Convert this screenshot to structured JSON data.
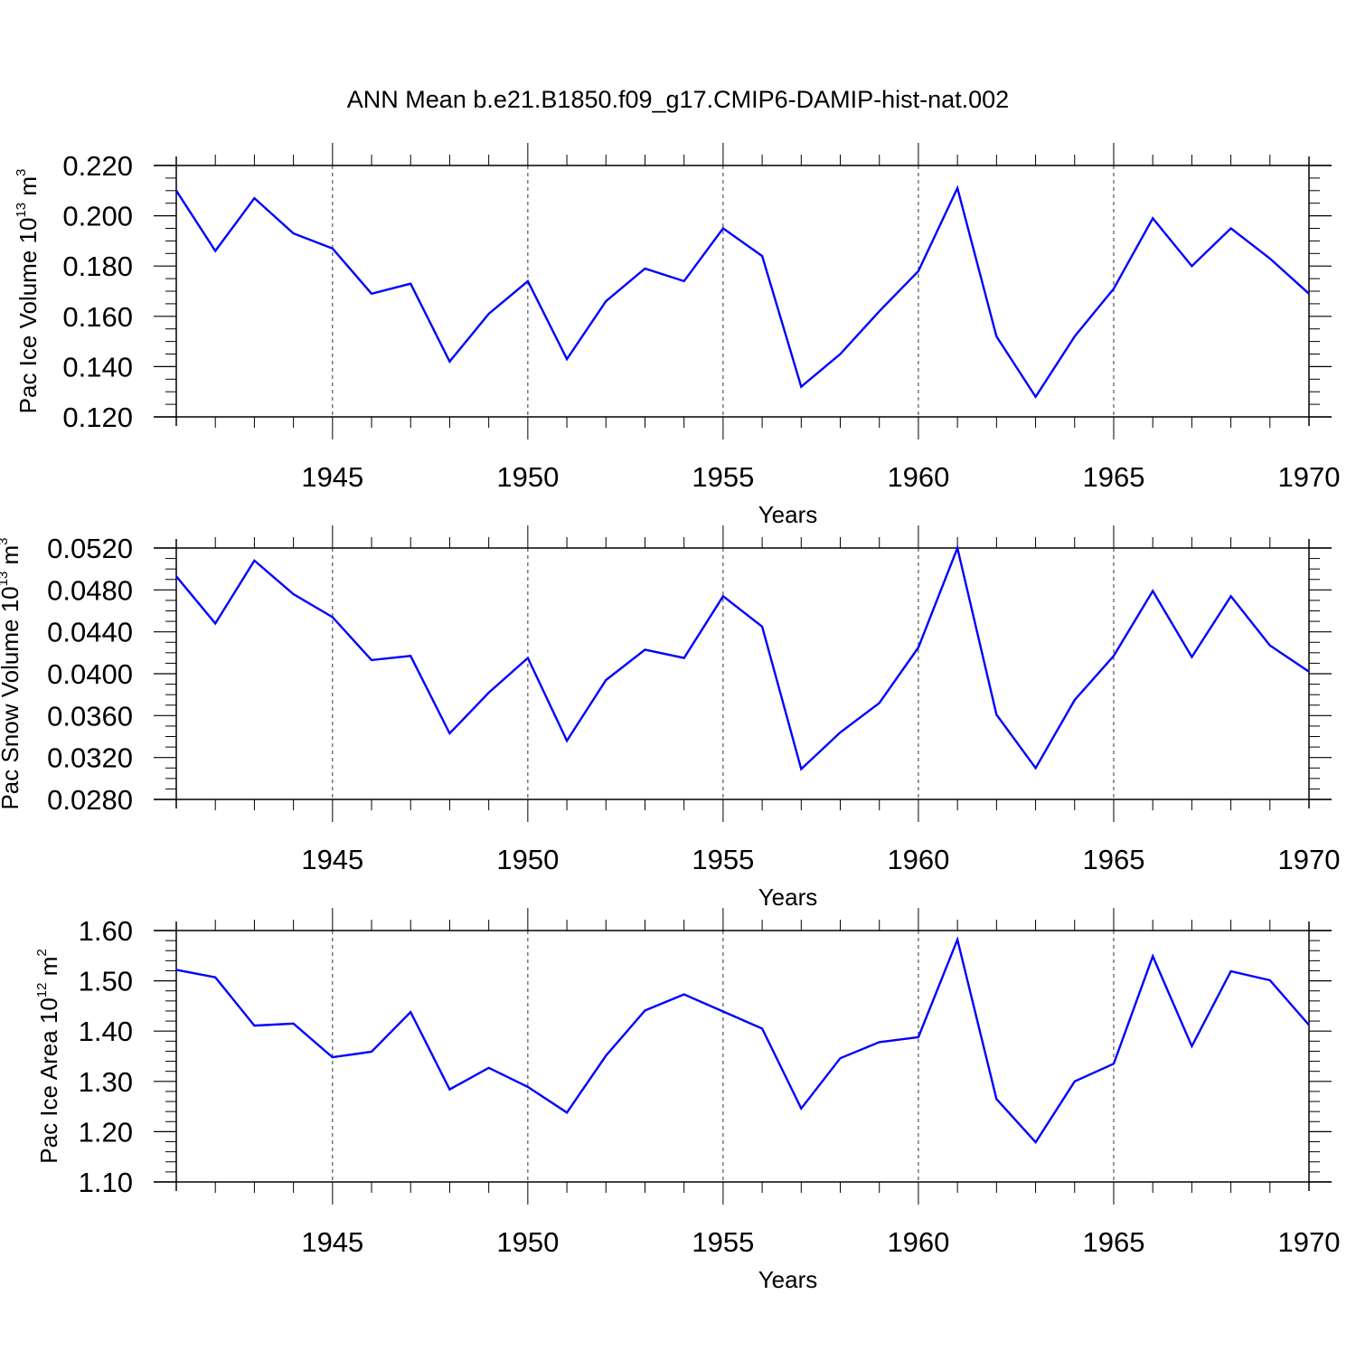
{
  "chart_title": "ANN Mean b.e21.B1850.f09_g17.CMIP6-DAMIP-hist-nat.002",
  "colors": {
    "line": "#0000ff",
    "axis": "#000000",
    "grid": "#000000"
  },
  "chart_data": [
    {
      "type": "line",
      "title": "ANN Mean b.e21.B1850.f09_g17.CMIP6-DAMIP-hist-nat.002",
      "ylabel": {
        "text": "Pac Ice Volume 10",
        "sup": "13",
        "unit": " m",
        "unit_sup": "3"
      },
      "xlabel": "Years",
      "xlim": [
        1941,
        1970
      ],
      "ylim": [
        0.12,
        0.22
      ],
      "x_ticks": [
        1945,
        1950,
        1955,
        1960,
        1965,
        1970
      ],
      "x_tick_labels": [
        "1945",
        "1950",
        "1955",
        "1960",
        "1965",
        "1970"
      ],
      "y_ticks": [
        0.12,
        0.14,
        0.16,
        0.18,
        0.2,
        0.22
      ],
      "y_tick_labels": [
        "0.120",
        "0.140",
        "0.160",
        "0.180",
        "0.200",
        "0.220"
      ],
      "y_minor_step": 0.005,
      "grid": "dashed vertical at major x ticks",
      "series": [
        {
          "name": "Pac Ice Volume",
          "x": [
            1941,
            1942,
            1943,
            1944,
            1945,
            1946,
            1947,
            1948,
            1949,
            1950,
            1951,
            1952,
            1953,
            1954,
            1955,
            1956,
            1957,
            1958,
            1959,
            1960,
            1961,
            1962,
            1963,
            1964,
            1965,
            1966,
            1967,
            1968,
            1969,
            1970
          ],
          "values": [
            0.21,
            0.186,
            0.207,
            0.193,
            0.187,
            0.169,
            0.173,
            0.142,
            0.161,
            0.174,
            0.143,
            0.166,
            0.179,
            0.174,
            0.195,
            0.184,
            0.132,
            0.145,
            0.162,
            0.178,
            0.211,
            0.152,
            0.128,
            0.152,
            0.171,
            0.199,
            0.18,
            0.195,
            0.183,
            0.169
          ]
        }
      ]
    },
    {
      "type": "line",
      "ylabel": {
        "text": "Pac Snow Volume 10",
        "sup": "13",
        "unit": " m",
        "unit_sup": "3"
      },
      "xlabel": "Years",
      "xlim": [
        1941,
        1970
      ],
      "ylim": [
        0.028,
        0.052
      ],
      "x_ticks": [
        1945,
        1950,
        1955,
        1960,
        1965,
        1970
      ],
      "x_tick_labels": [
        "1945",
        "1950",
        "1955",
        "1960",
        "1965",
        "1970"
      ],
      "y_ticks": [
        0.028,
        0.032,
        0.036,
        0.04,
        0.044,
        0.048,
        0.052
      ],
      "y_tick_labels": [
        "0.0280",
        "0.0320",
        "0.0360",
        "0.0400",
        "0.0440",
        "0.0480",
        "0.0520"
      ],
      "y_minor_step": 0.001,
      "grid": "dashed vertical at major x ticks",
      "series": [
        {
          "name": "Pac Snow Volume",
          "x": [
            1941,
            1942,
            1943,
            1944,
            1945,
            1946,
            1947,
            1948,
            1949,
            1950,
            1951,
            1952,
            1953,
            1954,
            1955,
            1956,
            1957,
            1958,
            1959,
            1960,
            1961,
            1962,
            1963,
            1964,
            1965,
            1966,
            1967,
            1968,
            1969,
            1970
          ],
          "values": [
            0.0493,
            0.0448,
            0.0508,
            0.0476,
            0.0454,
            0.0413,
            0.0417,
            0.0343,
            0.0382,
            0.0415,
            0.0336,
            0.0394,
            0.0423,
            0.0415,
            0.0474,
            0.0445,
            0.0309,
            0.0344,
            0.0372,
            0.0425,
            0.052,
            0.0361,
            0.031,
            0.0375,
            0.0417,
            0.0479,
            0.0416,
            0.0474,
            0.0427,
            0.0402
          ]
        }
      ]
    },
    {
      "type": "line",
      "ylabel": {
        "text": "Pac Ice Area 10",
        "sup": "12",
        "unit": " m",
        "unit_sup": "2"
      },
      "xlabel": "Years",
      "xlim": [
        1941,
        1970
      ],
      "ylim": [
        1.1,
        1.6
      ],
      "x_ticks": [
        1945,
        1950,
        1955,
        1960,
        1965,
        1970
      ],
      "x_tick_labels": [
        "1945",
        "1950",
        "1955",
        "1960",
        "1965",
        "1970"
      ],
      "y_ticks": [
        1.1,
        1.2,
        1.3,
        1.4,
        1.5,
        1.6
      ],
      "y_tick_labels": [
        "1.10",
        "1.20",
        "1.30",
        "1.40",
        "1.50",
        "1.60"
      ],
      "y_minor_step": 0.02,
      "grid": "dashed vertical at major x ticks",
      "series": [
        {
          "name": "Pac Ice Area",
          "x": [
            1941,
            1942,
            1943,
            1944,
            1945,
            1946,
            1947,
            1948,
            1949,
            1950,
            1951,
            1952,
            1953,
            1954,
            1955,
            1956,
            1957,
            1958,
            1959,
            1960,
            1961,
            1962,
            1963,
            1964,
            1965,
            1966,
            1967,
            1968,
            1969,
            1970
          ],
          "values": [
            1.522,
            1.507,
            1.411,
            1.415,
            1.348,
            1.359,
            1.438,
            1.284,
            1.327,
            1.289,
            1.238,
            1.351,
            1.441,
            1.473,
            1.439,
            1.405,
            1.246,
            1.346,
            1.378,
            1.388,
            1.582,
            1.265,
            1.179,
            1.3,
            1.335,
            1.549,
            1.37,
            1.519,
            1.501,
            1.412
          ]
        }
      ]
    }
  ]
}
